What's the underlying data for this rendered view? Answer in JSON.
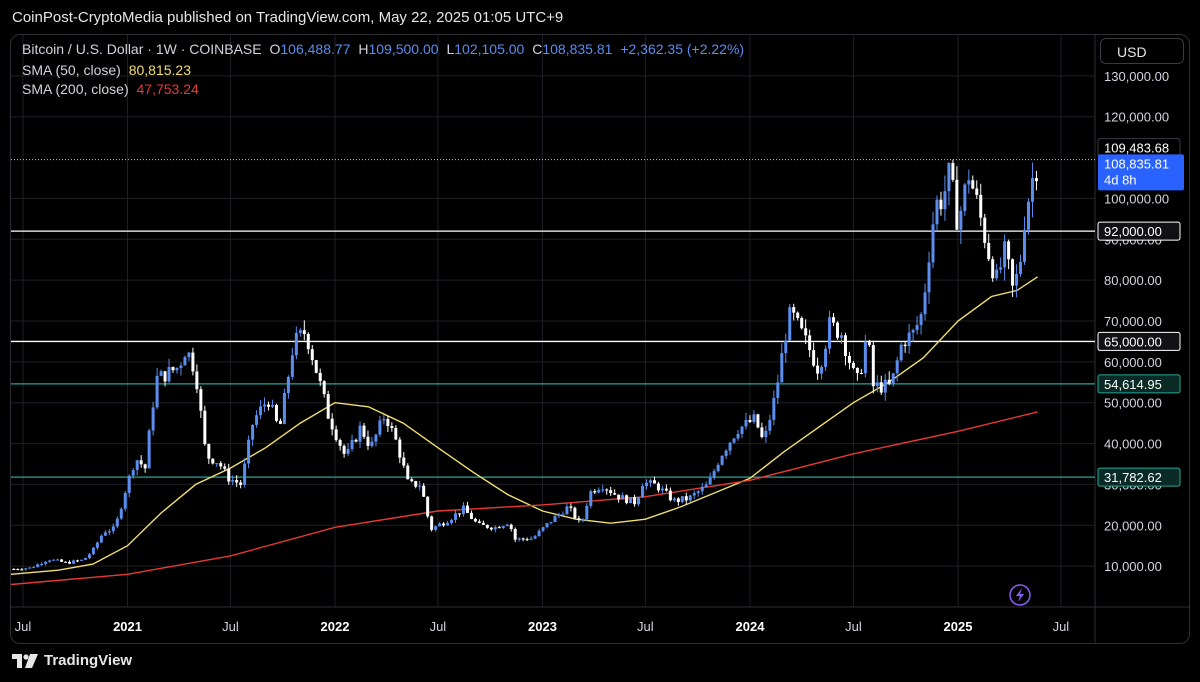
{
  "header": {
    "published": "CoinPost-CryptoMedia published on TradingView.com, May 22, 2025 01:05 UTC+9"
  },
  "legend": {
    "symbol": "Bitcoin / U.S. Dollar · 1W · COINBASE",
    "open_label": "O",
    "open": "106,488.77",
    "high_label": "H",
    "high": "109,500.00",
    "low_label": "L",
    "low": "102,105.00",
    "close_label": "C",
    "close": "108,835.81",
    "change": "+2,362.35 (+2.22%)",
    "sma50_label": "SMA (50, close)",
    "sma50_value": "80,815.23",
    "sma200_label": "SMA (200, close)",
    "sma200_value": "47,753.24"
  },
  "currency_button": "USD",
  "footer": {
    "brand": "TradingView"
  },
  "colors": {
    "up": "#5b8def",
    "down": "#ffffff",
    "sma50": "#f0df6e",
    "sma200": "#e53935",
    "level_white": "#ffffff",
    "level_teal": "#26a69a",
    "price_tag": "#2962ff"
  },
  "chart_data": {
    "type": "candlestick",
    "symbol": "BTCUSD",
    "interval": "1W",
    "exchange": "COINBASE",
    "ylim": [
      0,
      140000
    ],
    "xlim": [
      "2020-06-10",
      "2025-08-30"
    ],
    "y_ticks": [
      {
        "value": 10000,
        "label": "10,000.00"
      },
      {
        "value": 20000,
        "label": "20,000.00"
      },
      {
        "value": 30000,
        "label": "30,000.00"
      },
      {
        "value": 40000,
        "label": "40,000.00"
      },
      {
        "value": 50000,
        "label": "50,000.00"
      },
      {
        "value": 60000,
        "label": "60,000.00"
      },
      {
        "value": 70000,
        "label": "70,000.00"
      },
      {
        "value": 80000,
        "label": "80,000.00"
      },
      {
        "value": 90000,
        "label": "90,000.00"
      },
      {
        "value": 100000,
        "label": "100,000.00"
      },
      {
        "value": 120000,
        "label": "120,000.00"
      },
      {
        "value": 130000,
        "label": "130,000.00"
      }
    ],
    "x_ticks": [
      {
        "date": "2020-07-01",
        "label": "Jul",
        "bold": false
      },
      {
        "date": "2021-01-01",
        "label": "2021",
        "bold": true
      },
      {
        "date": "2021-07-01",
        "label": "Jul",
        "bold": false
      },
      {
        "date": "2022-01-01",
        "label": "2022",
        "bold": true
      },
      {
        "date": "2022-07-01",
        "label": "Jul",
        "bold": false
      },
      {
        "date": "2023-01-01",
        "label": "2023",
        "bold": true
      },
      {
        "date": "2023-07-01",
        "label": "Jul",
        "bold": false
      },
      {
        "date": "2024-01-01",
        "label": "2024",
        "bold": true
      },
      {
        "date": "2024-07-01",
        "label": "Jul",
        "bold": false
      },
      {
        "date": "2025-01-01",
        "label": "2025",
        "bold": true
      },
      {
        "date": "2025-07-01",
        "label": "Jul",
        "bold": false
      }
    ],
    "levels": [
      {
        "value": 92000,
        "label": "92,000.00",
        "color": "#ffffff"
      },
      {
        "value": 65000,
        "label": "65,000.00",
        "color": "#ffffff"
      },
      {
        "value": 54614.95,
        "label": "54,614.95",
        "color": "#26a69a"
      },
      {
        "value": 31782.62,
        "label": "31,782.62",
        "color": "#26a69a"
      }
    ],
    "price_tags": [
      {
        "value": 109483.68,
        "label": "109,483.68",
        "style": "dotted"
      },
      {
        "value": 108835.81,
        "label": "108,835.81",
        "sublabel": "4d 8h",
        "style": "current"
      }
    ],
    "close_series": [
      [
        "2020-06-15",
        9300
      ],
      [
        "2020-07-15",
        9600
      ],
      [
        "2020-08-15",
        11700
      ],
      [
        "2020-09-15",
        10800
      ],
      [
        "2020-10-15",
        11500
      ],
      [
        "2020-11-01",
        13800
      ],
      [
        "2020-11-20",
        18500
      ],
      [
        "2020-12-10",
        19200
      ],
      [
        "2020-12-28",
        28500
      ],
      [
        "2021-01-15",
        36500
      ],
      [
        "2021-02-01",
        34000
      ],
      [
        "2021-02-20",
        55800
      ],
      [
        "2021-03-10",
        57000
      ],
      [
        "2021-04-01",
        58800
      ],
      [
        "2021-04-14",
        63500
      ],
      [
        "2021-05-01",
        57500
      ],
      [
        "2021-05-19",
        37000
      ],
      [
        "2021-06-10",
        35500
      ],
      [
        "2021-06-26",
        31700
      ],
      [
        "2021-07-20",
        30000
      ],
      [
        "2021-08-10",
        45500
      ],
      [
        "2021-09-05",
        51000
      ],
      [
        "2021-09-25",
        43000
      ],
      [
        "2021-10-20",
        64500
      ],
      [
        "2021-11-10",
        67500
      ],
      [
        "2021-12-01",
        57000
      ],
      [
        "2021-12-20",
        47000
      ],
      [
        "2022-01-20",
        36500
      ],
      [
        "2022-02-15",
        44000
      ],
      [
        "2022-03-05",
        39000
      ],
      [
        "2022-03-30",
        47200
      ],
      [
        "2022-04-20",
        40000
      ],
      [
        "2022-05-10",
        30000
      ],
      [
        "2022-06-01",
        30000
      ],
      [
        "2022-06-18",
        19000
      ],
      [
        "2022-07-15",
        21000
      ],
      [
        "2022-08-15",
        24000
      ],
      [
        "2022-09-10",
        20000
      ],
      [
        "2022-10-10",
        19500
      ],
      [
        "2022-11-05",
        21000
      ],
      [
        "2022-11-10",
        16500
      ],
      [
        "2022-12-15",
        16800
      ],
      [
        "2023-01-15",
        21000
      ],
      [
        "2023-02-15",
        24500
      ],
      [
        "2023-03-10",
        20000
      ],
      [
        "2023-03-25",
        28000
      ],
      [
        "2023-04-15",
        30000
      ],
      [
        "2023-05-15",
        27000
      ],
      [
        "2023-06-15",
        25500
      ],
      [
        "2023-06-25",
        30500
      ],
      [
        "2023-07-20",
        29800
      ],
      [
        "2023-08-20",
        26000
      ],
      [
        "2023-09-15",
        26500
      ],
      [
        "2023-10-20",
        30000
      ],
      [
        "2023-11-10",
        37000
      ],
      [
        "2023-12-10",
        43500
      ],
      [
        "2024-01-10",
        46000
      ],
      [
        "2024-01-25",
        40000
      ],
      [
        "2024-02-15",
        52000
      ],
      [
        "2024-03-05",
        68000
      ],
      [
        "2024-03-13",
        72000
      ],
      [
        "2024-04-15",
        63000
      ],
      [
        "2024-05-01",
        58000
      ],
      [
        "2024-05-20",
        69000
      ],
      [
        "2024-06-10",
        67000
      ],
      [
        "2024-07-01",
        57000
      ],
      [
        "2024-07-10",
        55000
      ],
      [
        "2024-07-25",
        67000
      ],
      [
        "2024-08-05",
        54000
      ],
      [
        "2024-09-05",
        54000
      ],
      [
        "2024-09-25",
        65000
      ],
      [
        "2024-10-15",
        67000
      ],
      [
        "2024-10-30",
        72000
      ],
      [
        "2024-11-12",
        88000
      ],
      [
        "2024-11-22",
        98500
      ],
      [
        "2024-12-05",
        100000
      ],
      [
        "2024-12-17",
        106000
      ],
      [
        "2025-01-01",
        94000
      ],
      [
        "2025-01-20",
        106000
      ],
      [
        "2025-02-05",
        98000
      ],
      [
        "2025-02-25",
        86000
      ],
      [
        "2025-03-10",
        80000
      ],
      [
        "2025-03-25",
        87000
      ],
      [
        "2025-04-08",
        77000
      ],
      [
        "2025-04-20",
        84000
      ],
      [
        "2025-04-28",
        95000
      ],
      [
        "2025-05-10",
        104000
      ],
      [
        "2025-05-21",
        108835.81
      ]
    ],
    "series": [
      {
        "name": "SMA (50, close)",
        "color": "#f0df6e",
        "points": [
          [
            "2020-06-10",
            8000
          ],
          [
            "2020-09-01",
            9000
          ],
          [
            "2020-11-01",
            10500
          ],
          [
            "2021-01-01",
            15000
          ],
          [
            "2021-03-01",
            23000
          ],
          [
            "2021-05-01",
            30000
          ],
          [
            "2021-07-01",
            34000
          ],
          [
            "2021-09-01",
            39000
          ],
          [
            "2021-11-01",
            45000
          ],
          [
            "2022-01-01",
            50000
          ],
          [
            "2022-03-01",
            49000
          ],
          [
            "2022-05-01",
            45000
          ],
          [
            "2022-07-01",
            39000
          ],
          [
            "2022-09-01",
            33000
          ],
          [
            "2022-11-01",
            27500
          ],
          [
            "2023-01-01",
            23500
          ],
          [
            "2023-03-01",
            21500
          ],
          [
            "2023-05-01",
            20500
          ],
          [
            "2023-07-01",
            21500
          ],
          [
            "2023-09-01",
            24500
          ],
          [
            "2023-11-01",
            28000
          ],
          [
            "2024-01-01",
            31500
          ],
          [
            "2024-03-01",
            38000
          ],
          [
            "2024-05-01",
            44000
          ],
          [
            "2024-07-01",
            50000
          ],
          [
            "2024-09-01",
            55000
          ],
          [
            "2024-11-01",
            61000
          ],
          [
            "2025-01-01",
            70000
          ],
          [
            "2025-03-01",
            76000
          ],
          [
            "2025-04-15",
            77500
          ],
          [
            "2025-05-21",
            80815.23
          ]
        ]
      },
      {
        "name": "SMA (200, close)",
        "color": "#e53935",
        "points": [
          [
            "2020-06-10",
            5500
          ],
          [
            "2021-01-01",
            8000
          ],
          [
            "2021-07-01",
            12500
          ],
          [
            "2022-01-01",
            19500
          ],
          [
            "2022-07-01",
            23500
          ],
          [
            "2023-01-01",
            25000
          ],
          [
            "2023-07-01",
            27000
          ],
          [
            "2024-01-01",
            31000
          ],
          [
            "2024-07-01",
            37500
          ],
          [
            "2025-01-01",
            43000
          ],
          [
            "2025-05-21",
            47753.24
          ]
        ]
      }
    ]
  }
}
